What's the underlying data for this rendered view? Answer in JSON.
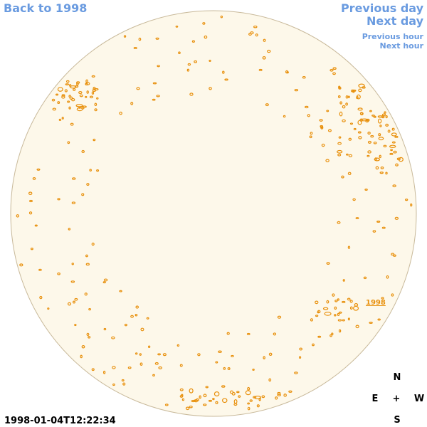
{
  "nav": {
    "back": "Back to 1998",
    "previous_day": "Previous day",
    "next_day": "Next day",
    "previous_hour": "Previous hour",
    "next_hour": "Next hour"
  },
  "region_label": "1998",
  "compass": {
    "north": "N",
    "east": "E",
    "center": "+",
    "west": "W",
    "south": "S"
  },
  "timestamp": "1998-01-04T12:22:34"
}
